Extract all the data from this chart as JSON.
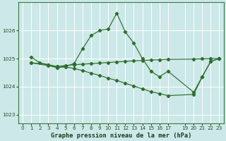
{
  "title": "Graphe pression niveau de la mer (hPa)",
  "bg_color": "#cce8e8",
  "grid_color": "#ffffff",
  "line_color": "#2d6e2d",
  "xlim": [
    -0.5,
    23.5
  ],
  "ylim": [
    1022.7,
    1027.0
  ],
  "yticks": [
    1023,
    1024,
    1025,
    1026
  ],
  "xticks": [
    0,
    1,
    2,
    3,
    4,
    5,
    6,
    7,
    8,
    9,
    10,
    11,
    12,
    13,
    14,
    15,
    16,
    17,
    19,
    20,
    21,
    22,
    23
  ],
  "series": [
    {
      "x": [
        1,
        2,
        3,
        4,
        5,
        6,
        7,
        8,
        9,
        10,
        11,
        12,
        13,
        14,
        15,
        16,
        17,
        20,
        21,
        22,
        23
      ],
      "y": [
        1025.05,
        1024.85,
        1024.78,
        1024.68,
        1024.72,
        1024.82,
        1025.35,
        1025.82,
        1026.0,
        1026.05,
        1026.62,
        1025.95,
        1025.55,
        1025.0,
        1024.55,
        1024.35,
        1024.55,
        1023.8,
        1024.35,
        1024.9,
        1025.0
      ]
    },
    {
      "x": [
        1,
        3,
        4,
        5,
        6,
        7,
        8,
        9,
        10,
        11,
        12,
        13,
        14,
        15,
        16,
        17,
        20,
        21,
        22,
        23
      ],
      "y": [
        1024.85,
        1024.78,
        1024.72,
        1024.75,
        1024.78,
        1024.8,
        1024.82,
        1024.84,
        1024.86,
        1024.88,
        1024.9,
        1024.92,
        1024.93,
        1024.95,
        1024.96,
        1024.97,
        1024.98,
        1024.99,
        1025.0,
        1025.0
      ]
    },
    {
      "x": [
        1,
        3,
        4,
        5,
        6,
        7,
        8,
        9,
        10,
        11,
        12,
        13,
        14,
        15,
        16,
        17,
        20,
        21,
        22,
        23
      ],
      "y": [
        1024.85,
        1024.75,
        1024.68,
        1024.7,
        1024.65,
        1024.57,
        1024.48,
        1024.4,
        1024.3,
        1024.22,
        1024.12,
        1024.02,
        1023.92,
        1023.82,
        1023.75,
        1023.68,
        1023.72,
        1024.35,
        1024.9,
        1025.0
      ]
    }
  ]
}
